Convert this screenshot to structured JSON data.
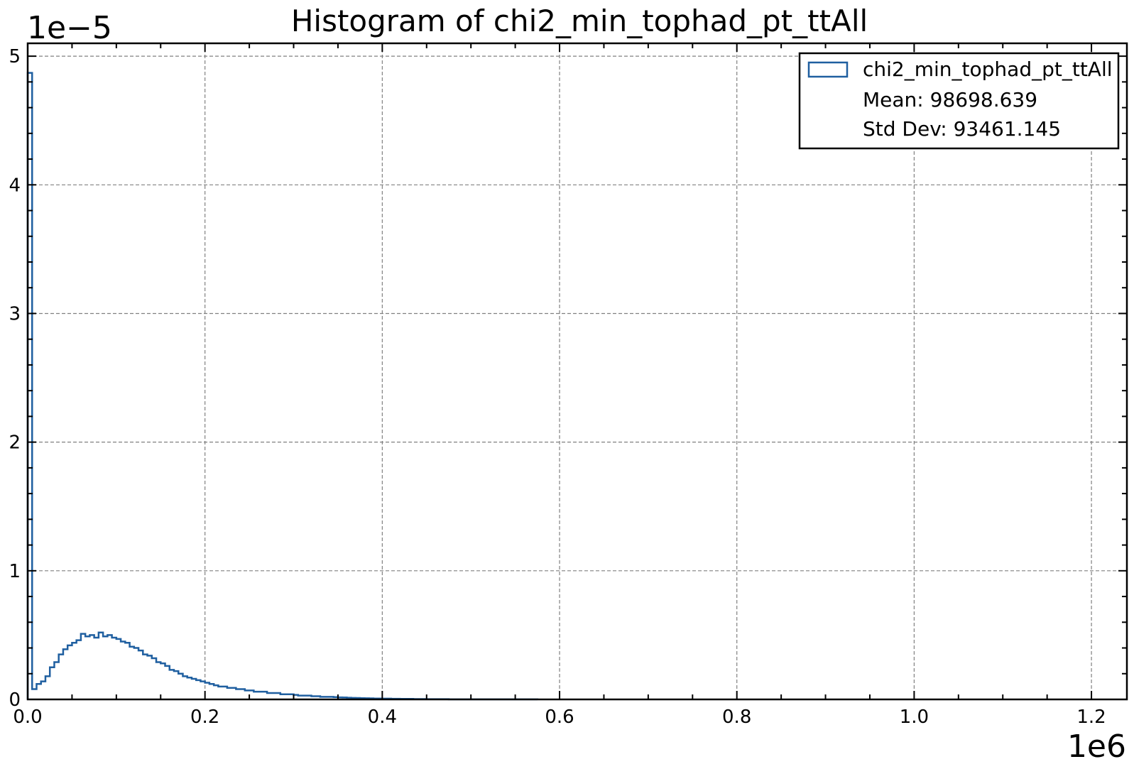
{
  "chart_data": {
    "type": "bar",
    "title": "Histogram of chi2_min_tophad_pt_ttAll",
    "xlabel": "",
    "ylabel": "",
    "x_offset_label": "1e6",
    "y_offset_label": "1e−5",
    "xlim": [
      0,
      1240000
    ],
    "ylim": [
      0,
      5.1e-05
    ],
    "x_ticks": [
      {
        "value": 0,
        "label": "0.0"
      },
      {
        "value": 200000,
        "label": "0.2"
      },
      {
        "value": 400000,
        "label": "0.4"
      },
      {
        "value": 600000,
        "label": "0.6"
      },
      {
        "value": 800000,
        "label": "0.8"
      },
      {
        "value": 1000000,
        "label": "1.0"
      },
      {
        "value": 1200000,
        "label": "1.2"
      }
    ],
    "y_ticks": [
      {
        "value": 0,
        "label": "0"
      },
      {
        "value": 1e-05,
        "label": "1"
      },
      {
        "value": 2e-05,
        "label": "2"
      },
      {
        "value": 3e-05,
        "label": "3"
      },
      {
        "value": 4e-05,
        "label": "4"
      },
      {
        "value": 5e-05,
        "label": "5"
      }
    ],
    "grid": true,
    "histtype": "step",
    "bin_width": 5000,
    "series": [
      {
        "name": "chi2_min_tophad_pt_ttAll",
        "color": "#1f5fa0",
        "bin_edges_start": 0,
        "values": [
          4.87e-05,
          8e-07,
          1.2e-06,
          1.4e-06,
          1.8e-06,
          2.5e-06,
          2.9e-06,
          3.5e-06,
          3.9e-06,
          4.2e-06,
          4.4e-06,
          4.6e-06,
          5.1e-06,
          4.9e-06,
          5e-06,
          4.8e-06,
          5.2e-06,
          4.9e-06,
          5e-06,
          4.8e-06,
          4.7e-06,
          4.5e-06,
          4.4e-06,
          4.1e-06,
          4e-06,
          3.8e-06,
          3.5e-06,
          3.4e-06,
          3.2e-06,
          2.9e-06,
          2.8e-06,
          2.6e-06,
          2.3e-06,
          2.2e-06,
          2e-06,
          1.8e-06,
          1.7e-06,
          1.6e-06,
          1.5e-06,
          1.4e-06,
          1.3e-06,
          1.2e-06,
          1.1e-06,
          1e-06,
          1e-06,
          9e-07,
          9e-07,
          8e-07,
          8e-07,
          7e-07,
          7e-07,
          6e-07,
          6e-07,
          6e-07,
          5e-07,
          5e-07,
          5e-07,
          4e-07,
          4e-07,
          4e-07,
          3.5e-07,
          3e-07,
          3e-07,
          3e-07,
          2.5e-07,
          2.5e-07,
          2e-07,
          2e-07,
          2e-07,
          1.8e-07,
          1.6e-07,
          1.5e-07,
          1.3e-07,
          1.2e-07,
          1.1e-07,
          1e-07,
          9e-08,
          8e-08,
          7e-08,
          7e-08,
          6e-08,
          6e-08,
          5e-08,
          5e-08,
          4e-08,
          4e-08,
          4e-08,
          3e-08,
          3e-08,
          3e-08,
          2e-08,
          2e-08,
          2e-08,
          2e-08,
          2e-08,
          1e-08,
          1e-08,
          1e-08,
          1e-08,
          1e-08,
          1e-08,
          1e-08,
          1e-08,
          1e-08,
          5e-09,
          5e-09,
          5e-09,
          5e-09,
          5e-09,
          5e-09,
          5e-09,
          5e-09,
          5e-09,
          5e-09,
          5e-09
        ]
      }
    ],
    "legend": {
      "placement": "top-right",
      "entries": [
        {
          "label": "chi2_min_tophad_pt_ttAll",
          "has_swatch": true
        },
        {
          "label": "Mean: 98698.639",
          "has_swatch": false
        },
        {
          "label": "Std Dev: 93461.145",
          "has_swatch": false
        }
      ]
    }
  }
}
